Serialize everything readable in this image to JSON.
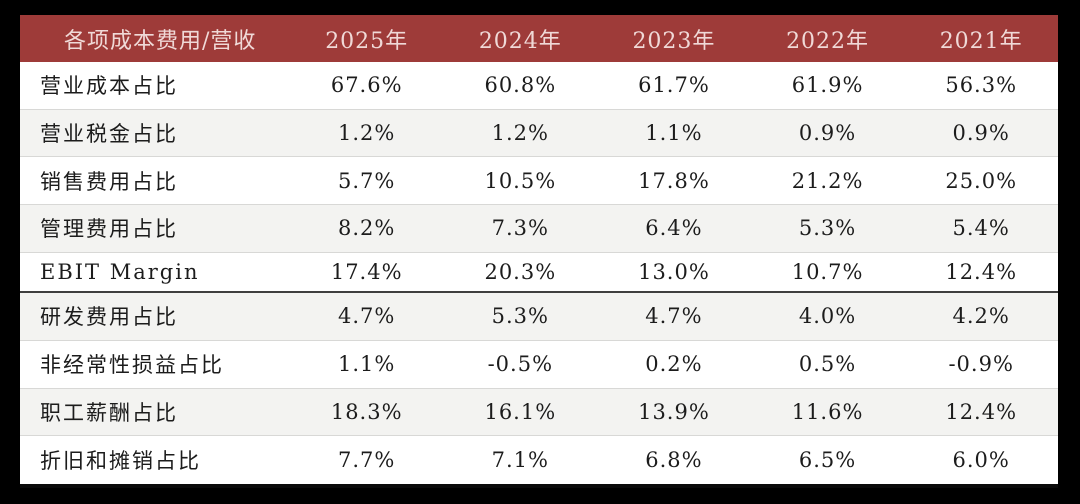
{
  "table": {
    "columns": [
      "各项成本费用/营收",
      "2025年",
      "2024年",
      "2023年",
      "2022年",
      "2021年"
    ],
    "rows": [
      {
        "label": "营业成本占比",
        "values": [
          "67.6%",
          "60.8%",
          "61.7%",
          "61.9%",
          "56.3%"
        ],
        "section_end": false
      },
      {
        "label": "营业税金占比",
        "values": [
          "1.2%",
          "1.2%",
          "1.1%",
          "0.9%",
          "0.9%"
        ],
        "section_end": false
      },
      {
        "label": "销售费用占比",
        "values": [
          "5.7%",
          "10.5%",
          "17.8%",
          "21.2%",
          "25.0%"
        ],
        "section_end": false
      },
      {
        "label": "管理费用占比",
        "values": [
          "8.2%",
          "7.3%",
          "6.4%",
          "5.3%",
          "5.4%"
        ],
        "section_end": false
      },
      {
        "label": "EBIT Margin",
        "values": [
          "17.4%",
          "20.3%",
          "13.0%",
          "10.7%",
          "12.4%"
        ],
        "section_end": true
      },
      {
        "label": "研发费用占比",
        "values": [
          "4.7%",
          "5.3%",
          "4.7%",
          "4.0%",
          "4.2%"
        ],
        "section_end": false
      },
      {
        "label": "非经常性损益占比",
        "values": [
          "1.1%",
          "-0.5%",
          "0.2%",
          "0.5%",
          "-0.9%"
        ],
        "section_end": false
      },
      {
        "label": "职工薪酬占比",
        "values": [
          "18.3%",
          "16.1%",
          "13.9%",
          "11.6%",
          "12.4%"
        ],
        "section_end": false
      },
      {
        "label": "折旧和摊销占比",
        "values": [
          "7.7%",
          "7.1%",
          "6.8%",
          "6.5%",
          "6.0%"
        ],
        "section_end": false
      }
    ],
    "colors": {
      "header_bg": "#9e3b39",
      "header_text": "#f0d9d7",
      "row_bg": "#ffffff",
      "row_alt_bg": "#f3f3f1",
      "row_divider": "#d8d8d6",
      "section_divider": "#3f3f3f",
      "frame_bg": "#000000",
      "body_text": "#1c1c1c"
    }
  },
  "chart_data": {
    "type": "table",
    "title": "各项成本费用/营收",
    "categories": [
      "2025年",
      "2024年",
      "2023年",
      "2022年",
      "2021年"
    ],
    "unit": "%",
    "series": [
      {
        "name": "营业成本占比",
        "values": [
          67.6,
          60.8,
          61.7,
          61.9,
          56.3
        ]
      },
      {
        "name": "营业税金占比",
        "values": [
          1.2,
          1.2,
          1.1,
          0.9,
          0.9
        ]
      },
      {
        "name": "销售费用占比",
        "values": [
          5.7,
          10.5,
          17.8,
          21.2,
          25.0
        ]
      },
      {
        "name": "管理费用占比",
        "values": [
          8.2,
          7.3,
          6.4,
          5.3,
          5.4
        ]
      },
      {
        "name": "EBIT Margin",
        "values": [
          17.4,
          20.3,
          13.0,
          10.7,
          12.4
        ]
      },
      {
        "name": "研发费用占比",
        "values": [
          4.7,
          5.3,
          4.7,
          4.0,
          4.2
        ]
      },
      {
        "name": "非经常性损益占比",
        "values": [
          1.1,
          -0.5,
          0.2,
          0.5,
          -0.9
        ]
      },
      {
        "name": "职工薪酬占比",
        "values": [
          18.3,
          16.1,
          13.9,
          11.6,
          12.4
        ]
      },
      {
        "name": "折旧和摊销占比",
        "values": [
          7.7,
          7.1,
          6.8,
          6.5,
          6.0
        ]
      }
    ],
    "layout": {
      "striped_rows": true,
      "section_break_after_row": 5,
      "header_color": "#9e3b39"
    }
  }
}
